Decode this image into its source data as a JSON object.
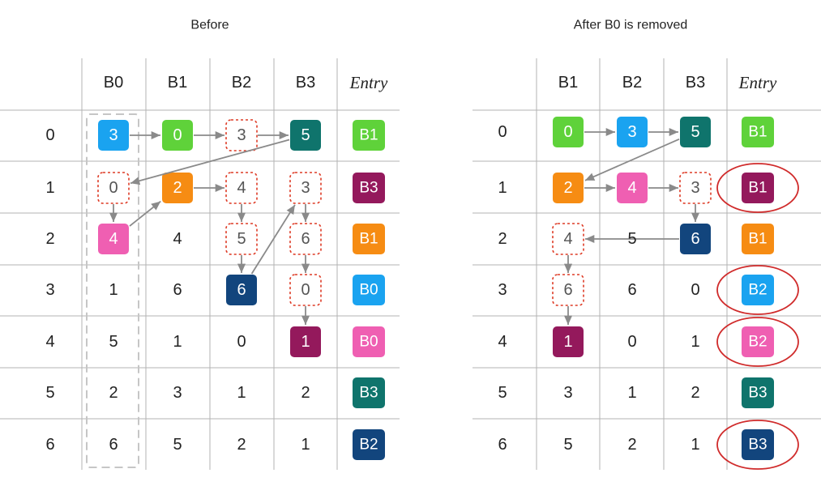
{
  "colors": {
    "B0": "#1aa3f0",
    "B1": "#f68c13",
    "B2": "#ef5fb2",
    "B3": "#0f746c",
    "green": "#5fd23a",
    "purple": "#94195c",
    "navy": "#12457d",
    "dashed": "#de3b26",
    "ring": "#d02b2b",
    "grid": "#b3b3b3",
    "arrow": "#8a8a8a",
    "col_dash": "#c6c6c6"
  },
  "before": {
    "title": "Before",
    "columns": [
      "B0",
      "B1",
      "B2",
      "B3"
    ],
    "entry_label": "Entry",
    "rows": [
      "0",
      "1",
      "2",
      "3",
      "4",
      "5",
      "6"
    ],
    "cells": [
      [
        {
          "v": "3",
          "s": "fill",
          "c": "B0"
        },
        {
          "v": "0",
          "s": "fill",
          "c": "green"
        },
        {
          "v": "3",
          "s": "dash"
        },
        {
          "v": "5",
          "s": "fill",
          "c": "B3"
        }
      ],
      [
        {
          "v": "0",
          "s": "dash"
        },
        {
          "v": "2",
          "s": "fill",
          "c": "B1"
        },
        {
          "v": "4",
          "s": "dash"
        },
        {
          "v": "3",
          "s": "dash"
        }
      ],
      [
        {
          "v": "4",
          "s": "fill",
          "c": "B2"
        },
        {
          "v": "4",
          "s": "plain"
        },
        {
          "v": "5",
          "s": "dash"
        },
        {
          "v": "6",
          "s": "dash"
        }
      ],
      [
        {
          "v": "1",
          "s": "plain"
        },
        {
          "v": "6",
          "s": "plain"
        },
        {
          "v": "6",
          "s": "fill",
          "c": "navy"
        },
        {
          "v": "0",
          "s": "dash"
        }
      ],
      [
        {
          "v": "5",
          "s": "plain"
        },
        {
          "v": "1",
          "s": "plain"
        },
        {
          "v": "0",
          "s": "plain"
        },
        {
          "v": "1",
          "s": "fill",
          "c": "purple"
        }
      ],
      [
        {
          "v": "2",
          "s": "plain"
        },
        {
          "v": "3",
          "s": "plain"
        },
        {
          "v": "1",
          "s": "plain"
        },
        {
          "v": "2",
          "s": "plain"
        }
      ],
      [
        {
          "v": "6",
          "s": "plain"
        },
        {
          "v": "5",
          "s": "plain"
        },
        {
          "v": "2",
          "s": "plain"
        },
        {
          "v": "1",
          "s": "plain"
        }
      ]
    ],
    "entries": [
      {
        "v": "B1",
        "c": "green"
      },
      {
        "v": "B3",
        "c": "purple"
      },
      {
        "v": "B1",
        "c": "B1"
      },
      {
        "v": "B0",
        "c": "B0"
      },
      {
        "v": "B0",
        "c": "B2"
      },
      {
        "v": "B3",
        "c": "B3"
      },
      {
        "v": "B2",
        "c": "navy"
      }
    ],
    "arrows": [
      {
        "from": [
          0,
          0
        ],
        "to": [
          0,
          1
        ]
      },
      {
        "from": [
          0,
          1
        ],
        "to": [
          0,
          2
        ]
      },
      {
        "from": [
          0,
          2
        ],
        "to": [
          0,
          3
        ]
      },
      {
        "from": [
          0,
          3
        ],
        "to": [
          1,
          0
        ]
      },
      {
        "from": [
          1,
          0
        ],
        "to": [
          2,
          0
        ]
      },
      {
        "from": [
          2,
          0
        ],
        "to": [
          1,
          1
        ]
      },
      {
        "from": [
          1,
          1
        ],
        "to": [
          1,
          2
        ]
      },
      {
        "from": [
          1,
          2
        ],
        "to": [
          2,
          2
        ]
      },
      {
        "from": [
          2,
          2
        ],
        "to": [
          3,
          2
        ]
      },
      {
        "from": [
          3,
          2
        ],
        "to": [
          1,
          3
        ]
      },
      {
        "from": [
          1,
          3
        ],
        "to": [
          2,
          3
        ]
      },
      {
        "from": [
          2,
          3
        ],
        "to": [
          3,
          3
        ]
      },
      {
        "from": [
          3,
          3
        ],
        "to": [
          4,
          3
        ]
      }
    ]
  },
  "after": {
    "title": "After B0 is removed",
    "columns": [
      "B1",
      "B2",
      "B3"
    ],
    "entry_label": "Entry",
    "rows": [
      "0",
      "1",
      "2",
      "3",
      "4",
      "5",
      "6"
    ],
    "cells": [
      [
        {
          "v": "0",
          "s": "fill",
          "c": "green"
        },
        {
          "v": "3",
          "s": "fill",
          "c": "B0"
        },
        {
          "v": "5",
          "s": "fill",
          "c": "B3"
        }
      ],
      [
        {
          "v": "2",
          "s": "fill",
          "c": "B1"
        },
        {
          "v": "4",
          "s": "fill",
          "c": "B2"
        },
        {
          "v": "3",
          "s": "dash"
        }
      ],
      [
        {
          "v": "4",
          "s": "dash"
        },
        {
          "v": "5",
          "s": "plain"
        },
        {
          "v": "6",
          "s": "fill",
          "c": "navy"
        }
      ],
      [
        {
          "v": "6",
          "s": "dash"
        },
        {
          "v": "6",
          "s": "plain"
        },
        {
          "v": "0",
          "s": "plain"
        }
      ],
      [
        {
          "v": "1",
          "s": "fill",
          "c": "purple"
        },
        {
          "v": "0",
          "s": "plain"
        },
        {
          "v": "1",
          "s": "plain"
        }
      ],
      [
        {
          "v": "3",
          "s": "plain"
        },
        {
          "v": "1",
          "s": "plain"
        },
        {
          "v": "2",
          "s": "plain"
        }
      ],
      [
        {
          "v": "5",
          "s": "plain"
        },
        {
          "v": "2",
          "s": "plain"
        },
        {
          "v": "1",
          "s": "plain"
        }
      ]
    ],
    "entries": [
      {
        "v": "B1",
        "c": "green",
        "ring": false
      },
      {
        "v": "B1",
        "c": "purple",
        "ring": true
      },
      {
        "v": "B1",
        "c": "B1",
        "ring": false
      },
      {
        "v": "B2",
        "c": "B0",
        "ring": true
      },
      {
        "v": "B2",
        "c": "B2",
        "ring": true
      },
      {
        "v": "B3",
        "c": "B3",
        "ring": false
      },
      {
        "v": "B3",
        "c": "navy",
        "ring": true
      }
    ],
    "arrows": [
      {
        "from": [
          0,
          0
        ],
        "to": [
          0,
          1
        ]
      },
      {
        "from": [
          0,
          1
        ],
        "to": [
          0,
          2
        ]
      },
      {
        "from": [
          0,
          2
        ],
        "to": [
          1,
          0
        ]
      },
      {
        "from": [
          1,
          0
        ],
        "to": [
          1,
          1
        ]
      },
      {
        "from": [
          1,
          1
        ],
        "to": [
          1,
          2
        ]
      },
      {
        "from": [
          1,
          2
        ],
        "to": [
          2,
          2
        ]
      },
      {
        "from": [
          2,
          2
        ],
        "to": [
          2,
          0
        ]
      },
      {
        "from": [
          2,
          0
        ],
        "to": [
          3,
          0
        ]
      },
      {
        "from": [
          3,
          0
        ],
        "to": [
          4,
          0
        ]
      }
    ]
  }
}
